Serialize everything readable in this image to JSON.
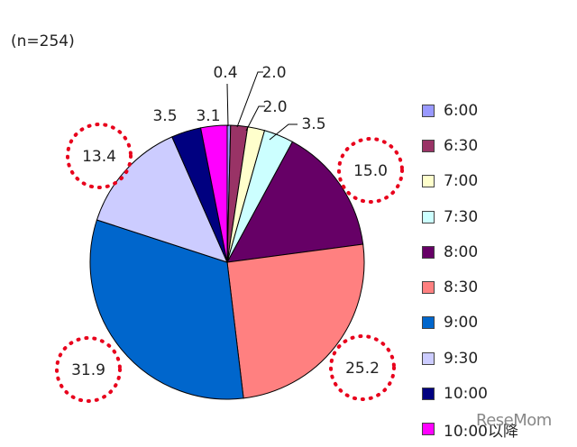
{
  "sample_label": "(n=254)",
  "watermark": "ReseMom",
  "chart_data": {
    "type": "pie",
    "start_angle_deg": -90,
    "direction": "clockwise",
    "labels": [
      "6:00",
      "6:30",
      "7:00",
      "7:30",
      "8:00",
      "8:30",
      "9:00",
      "9:30",
      "10:00",
      "10:00以降"
    ],
    "values": [
      0.4,
      2.0,
      2.0,
      3.5,
      15.0,
      25.2,
      31.9,
      13.4,
      3.5,
      3.1
    ],
    "colors": [
      "#9999ff",
      "#993366",
      "#ffffcc",
      "#ccffff",
      "#660066",
      "#ff8080",
      "#0066cc",
      "#ccccff",
      "#000080",
      "#ff00ff"
    ],
    "highlighted": [
      "8:00",
      "8:30",
      "9:00",
      "9:30"
    ],
    "highlight_style": "red dotted circle",
    "legend_position": "right"
  }
}
